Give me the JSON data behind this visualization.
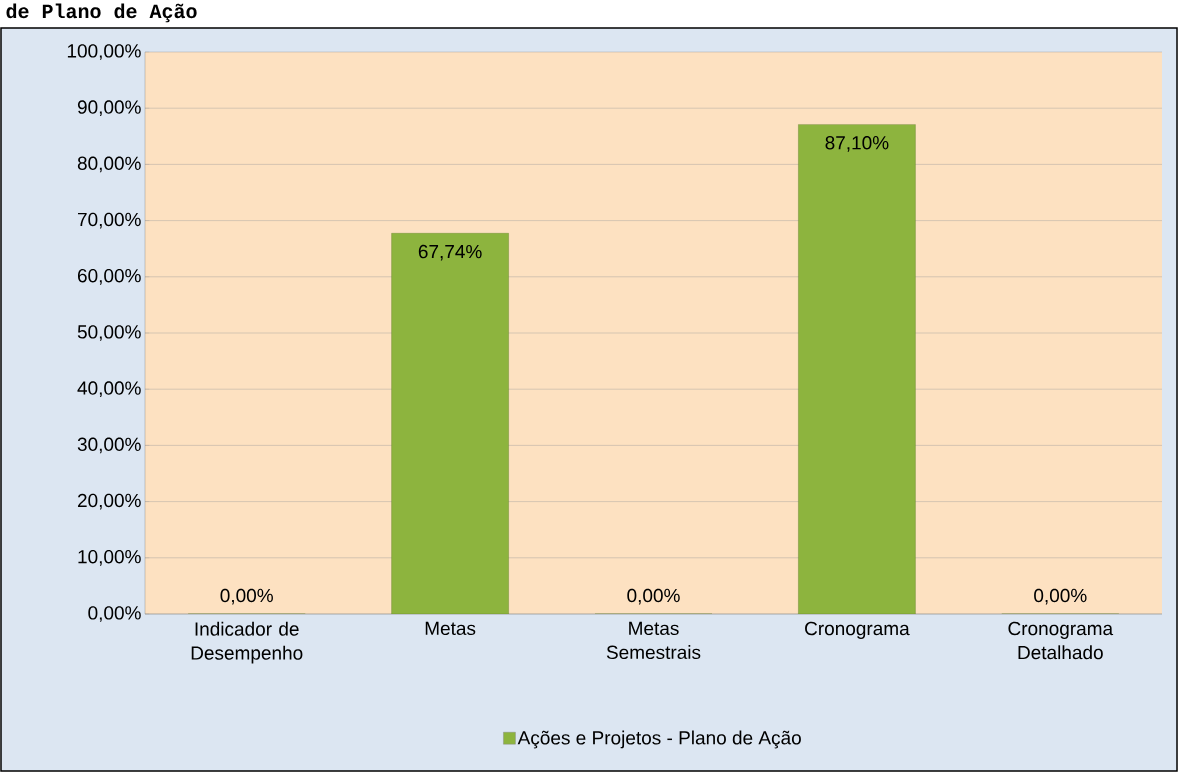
{
  "chart_data": {
    "type": "bar",
    "title": "de Plano de Ação",
    "categories": [
      "Indicador de Desempenho",
      "Metas",
      "Metas Semestrais",
      "Cronograma",
      "Cronograma Detalhado"
    ],
    "series": [
      {
        "name": "Ações e Projetos - Plano de Ação",
        "color": "#8db43e",
        "values": [
          0,
          67.74,
          0,
          87.1,
          0
        ],
        "value_labels": [
          "0,00%",
          "67,74%",
          "0,00%",
          "87,10%",
          "0,00%"
        ]
      }
    ],
    "ylim": [
      0,
      100
    ],
    "yticks": [
      {
        "value": 0,
        "label": "0,00%"
      },
      {
        "value": 10,
        "label": "10,00%"
      },
      {
        "value": 20,
        "label": "20,00%"
      },
      {
        "value": 30,
        "label": "30,00%"
      },
      {
        "value": 40,
        "label": "40,00%"
      },
      {
        "value": 50,
        "label": "50,00%"
      },
      {
        "value": 60,
        "label": "60,00%"
      },
      {
        "value": 70,
        "label": "70,00%"
      },
      {
        "value": 80,
        "label": "80,00%"
      },
      {
        "value": 90,
        "label": "90,00%"
      },
      {
        "value": 100,
        "label": "100,00%"
      }
    ],
    "grid": true,
    "legend": "bottom"
  }
}
